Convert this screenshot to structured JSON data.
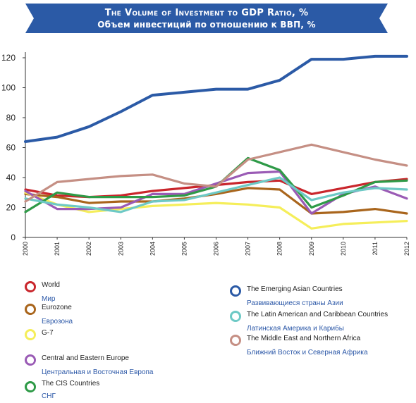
{
  "title": {
    "line1": "The Volume of Investment to GDP Ratio, %",
    "line2": "Объем инвестиций по отношению к ВВП, %",
    "color": "#2b5aa6"
  },
  "chart_data": {
    "type": "line",
    "x": [
      "2000",
      "2001",
      "2002",
      "2003",
      "2004",
      "2005",
      "2006",
      "2007",
      "2008",
      "2009",
      "2010",
      "2011",
      "2012"
    ],
    "ylim": [
      0,
      130
    ],
    "yticks": [
      0,
      20,
      40,
      60,
      80,
      100,
      120
    ],
    "series": [
      {
        "name": "World",
        "name_ru": "Мир",
        "color": "#c9262c",
        "values": [
          32,
          28,
          27,
          28,
          31,
          33,
          35,
          37,
          38,
          29,
          33,
          37,
          39
        ]
      },
      {
        "name": "Eurozone",
        "name_ru": "Еврозона",
        "color": "#a9651c",
        "values": [
          29,
          27,
          23,
          24,
          24,
          26,
          29,
          33,
          32,
          16,
          17,
          19,
          16
        ]
      },
      {
        "name": "G-7",
        "name_ru": "",
        "color": "#f5ee5a",
        "values": [
          30,
          22,
          17,
          19,
          21,
          22,
          23,
          22,
          20,
          6,
          9,
          10,
          11
        ]
      },
      {
        "name": "Central and Eastern Europe",
        "name_ru": "Центральная и Восточная Европа",
        "color": "#9a5bb5",
        "values": [
          31,
          19,
          19,
          20,
          29,
          29,
          36,
          43,
          44,
          16,
          29,
          34,
          26
        ]
      },
      {
        "name": "The CIS Countries",
        "name_ru": "СНГ",
        "color": "#2e9a47",
        "values": [
          17,
          30,
          27,
          27,
          27,
          28,
          34,
          53,
          45,
          20,
          28,
          37,
          38
        ]
      },
      {
        "name": "The Emerging Asian Countries",
        "name_ru": "Развивающиеся страны Азии",
        "color": "#2b5aa6",
        "values": [
          64,
          67,
          74,
          84,
          95,
          97,
          99,
          99,
          105,
          119,
          119,
          121,
          121
        ]
      },
      {
        "name": "The Latin American and Caribbean Countries",
        "name_ru": "Латинская Америка и Карибы",
        "color": "#6dc9c5",
        "values": [
          26,
          22,
          20,
          17,
          24,
          25,
          30,
          35,
          40,
          25,
          30,
          33,
          32
        ]
      },
      {
        "name": "The Middle East and Northern Africa",
        "name_ru": "Ближний Восток  и Северная Африка",
        "color": "#c58f84",
        "values": [
          24,
          37,
          39,
          41,
          42,
          36,
          34,
          52,
          57,
          62,
          57,
          52,
          48
        ]
      }
    ],
    "legend_placement": "bottom",
    "grid": false
  }
}
